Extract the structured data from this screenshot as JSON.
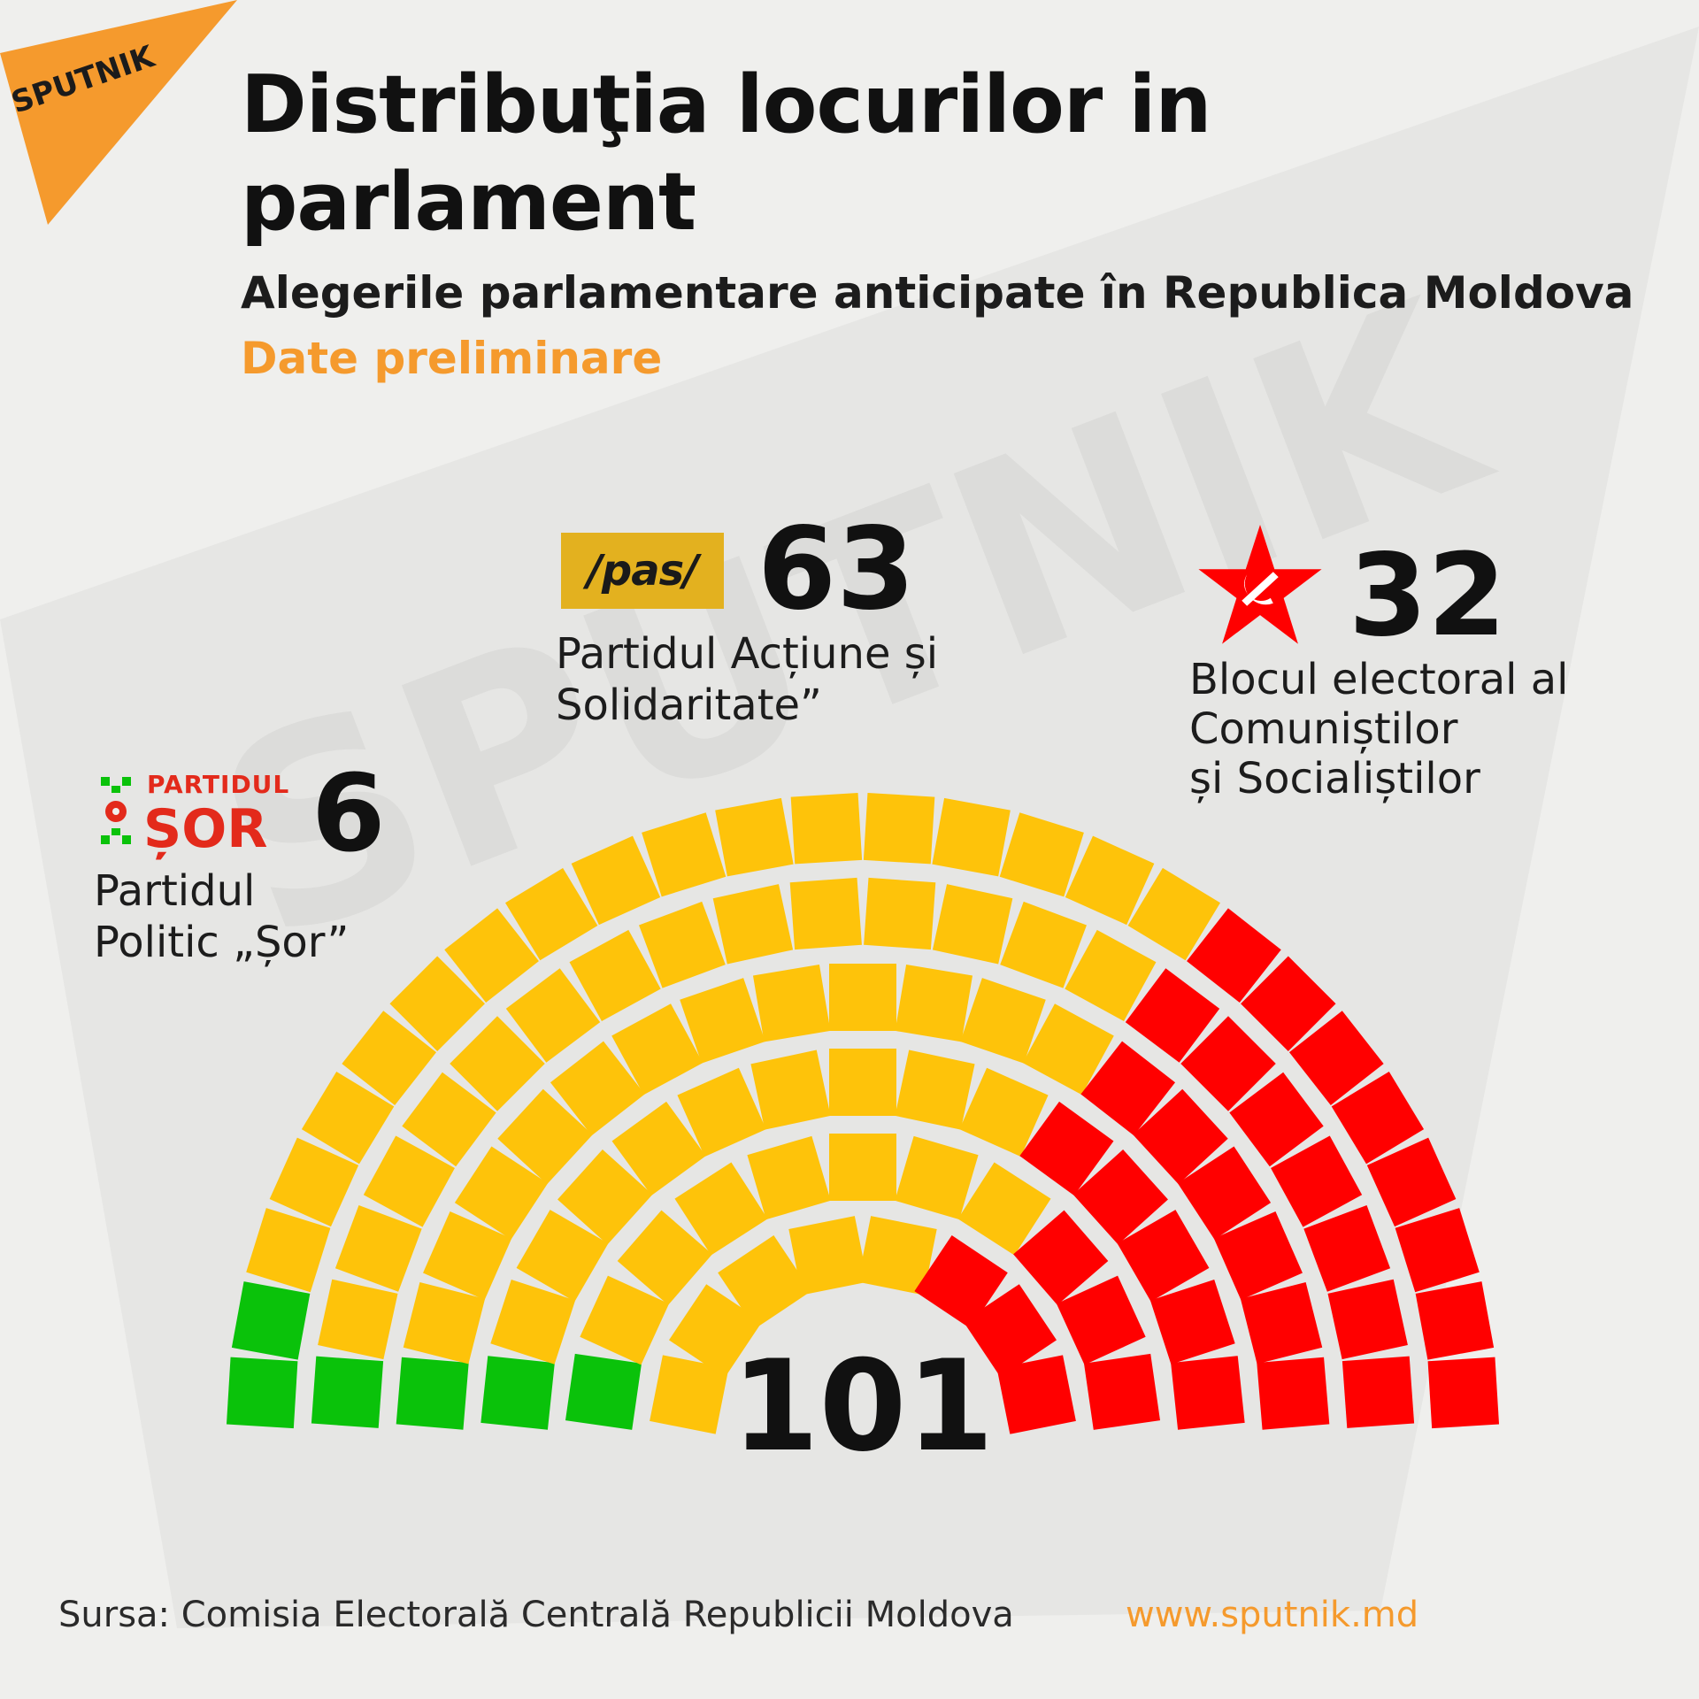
{
  "brand": {
    "logo_text": "SPUTNIK",
    "colors": {
      "badge": "#f59a2d",
      "watermark": "#e4e4e2"
    }
  },
  "title": "Distribuţia locurilor in parlament",
  "subtitle": "Alegerile parlamentare anticipate în Republica Moldova",
  "status": "Date preliminare",
  "parties": {
    "pas": {
      "logo_text": "/pas/",
      "seats_label": "63",
      "name": "Partidul Acțiune și\nSolidaritate”",
      "color": "#fec30a"
    },
    "bcs": {
      "icon": "red-star-hammer-sickle-icon",
      "seats_label": "32",
      "name": "Blocul electoral al\nComuniștilor\nși Socialiștilor",
      "color": "#ff0000"
    },
    "sor": {
      "logo_small": "PARTIDUL",
      "logo_big": "ȘOR",
      "seats_label": "6",
      "name": "Partidul\nPolitic „Șor”",
      "color": "#0ac20a"
    }
  },
  "chart_data": {
    "type": "parliament",
    "total_seats": 101,
    "total_label": "101",
    "series": [
      {
        "name": "Partidul Politic „Șor”",
        "value": 6,
        "color": "#0ac20a"
      },
      {
        "name": "Partidul Acțiune și Solidaritate",
        "value": 63,
        "color": "#fec30a"
      },
      {
        "name": "Blocul electoral al Comuniștilor și Socialiștilor",
        "value": 32,
        "color": "#ff0000"
      }
    ]
  },
  "footer": {
    "source": "Sursa: Comisia Electorală Centrală Republicii Moldova",
    "website": "www.sputnik.md"
  }
}
